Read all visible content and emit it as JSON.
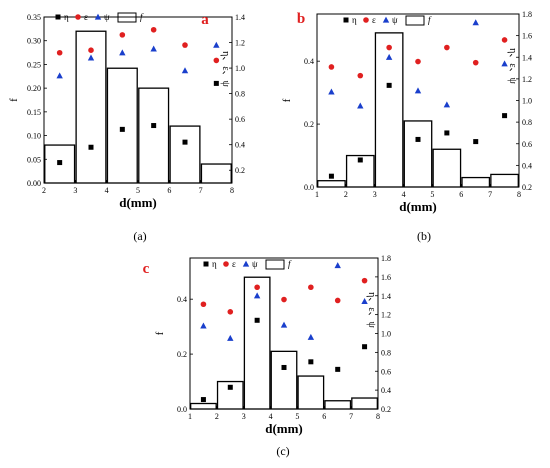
{
  "legend": {
    "eta": "η",
    "eps": "ε",
    "psi": "ψ",
    "f": "f"
  },
  "colors": {
    "eta": "#000000",
    "eps": "#e02020",
    "psi": "#1a3fcc",
    "bar": "#000000"
  },
  "chart_data": [
    {
      "type": "bar",
      "letter": "a",
      "caption": "(a)",
      "xlabel": "d(mm)",
      "ylabel": "f",
      "y2label": "η、ε、ψ",
      "xlim": [
        2,
        8
      ],
      "ylim": [
        0,
        0.35
      ],
      "y2lim": [
        0.1,
        1.4
      ],
      "xticks": [
        "2",
        "3",
        "4",
        "5",
        "6",
        "7",
        "8"
      ],
      "yticks": [
        "0.00",
        "0.05",
        "0.10",
        "0.15",
        "0.20",
        "0.25",
        "0.30",
        "0.35"
      ],
      "y2ticks": [
        "0.2",
        "0.4",
        "0.6",
        "0.8",
        "1.0",
        "1.2",
        "1.4"
      ],
      "bar_width": 0.95,
      "bars": {
        "x": [
          2.5,
          3.5,
          4.5,
          5.5,
          6.5,
          7.5
        ],
        "values": [
          0.08,
          0.32,
          0.242,
          0.2,
          0.12,
          0.04
        ]
      },
      "series": [
        {
          "key": "eta",
          "marker": "square",
          "x": [
            2.5,
            3.5,
            4.5,
            5.5,
            6.5,
            7.5
          ],
          "values": [
            0.26,
            0.38,
            0.52,
            0.55,
            0.42,
            0.88
          ]
        },
        {
          "key": "eps",
          "marker": "circle",
          "x": [
            2.5,
            3.5,
            4.5,
            5.5,
            6.5,
            7.5
          ],
          "values": [
            1.12,
            1.14,
            1.26,
            1.3,
            1.18,
            1.06
          ]
        },
        {
          "key": "psi",
          "marker": "triangle",
          "x": [
            2.5,
            3.5,
            4.5,
            5.5,
            6.5,
            7.5
          ],
          "values": [
            0.94,
            1.08,
            1.12,
            1.15,
            0.98,
            1.18
          ]
        }
      ]
    },
    {
      "type": "bar",
      "letter": "b",
      "caption": "(b)",
      "xlabel": "d(mm)",
      "ylabel": "f",
      "y2label": "η、ε、ψ",
      "xlim": [
        1,
        8
      ],
      "ylim": [
        0,
        0.55
      ],
      "y2lim": [
        0.2,
        1.8
      ],
      "xticks": [
        "1",
        "2",
        "3",
        "4",
        "5",
        "6",
        "7",
        "8"
      ],
      "yticks": [
        "0.0",
        "0.2",
        "0.4"
      ],
      "y2ticks": [
        "0.2",
        "0.4",
        "0.6",
        "0.8",
        "1.0",
        "1.2",
        "1.4",
        "1.6",
        "1.8"
      ],
      "bar_width": 0.95,
      "bars": {
        "x": [
          1.5,
          2.5,
          3.5,
          4.5,
          5.5,
          6.5,
          7.5
        ],
        "values": [
          0.02,
          0.1,
          0.49,
          0.21,
          0.12,
          0.03,
          0.04
        ]
      },
      "series": [
        {
          "key": "eta",
          "marker": "square",
          "x": [
            1.5,
            2.5,
            3.5,
            4.5,
            5.5,
            6.5,
            7.5
          ],
          "values": [
            0.3,
            0.45,
            1.14,
            0.64,
            0.7,
            0.62,
            0.86
          ]
        },
        {
          "key": "eps",
          "marker": "circle",
          "x": [
            1.5,
            2.5,
            3.5,
            4.5,
            5.5,
            6.5,
            7.5
          ],
          "values": [
            1.31,
            1.23,
            1.49,
            1.36,
            1.49,
            1.35,
            1.56
          ]
        },
        {
          "key": "psi",
          "marker": "triangle",
          "x": [
            1.5,
            2.5,
            3.5,
            4.5,
            5.5,
            6.5,
            7.5
          ],
          "values": [
            1.08,
            0.95,
            1.4,
            1.09,
            0.96,
            1.72,
            1.34
          ]
        }
      ]
    },
    {
      "type": "bar",
      "letter": "c",
      "caption": "(c)",
      "xlabel": "d(mm)",
      "ylabel": "f",
      "y2label": "η、ε、ψ",
      "xlim": [
        1,
        8
      ],
      "ylim": [
        0,
        0.55
      ],
      "y2lim": [
        0.2,
        1.8
      ],
      "xticks": [
        "1",
        "2",
        "3",
        "4",
        "5",
        "6",
        "7",
        "8"
      ],
      "yticks": [
        "0.0",
        "0.2",
        "0.4"
      ],
      "y2ticks": [
        "0.2",
        "0.4",
        "0.6",
        "0.8",
        "1.0",
        "1.2",
        "1.4",
        "1.6",
        "1.8"
      ],
      "bar_width": 0.95,
      "bars": {
        "x": [
          1.5,
          2.5,
          3.5,
          4.5,
          5.5,
          6.5,
          7.5
        ],
        "values": [
          0.02,
          0.1,
          0.48,
          0.21,
          0.12,
          0.03,
          0.04
        ]
      },
      "series": [
        {
          "key": "eta",
          "marker": "square",
          "x": [
            1.5,
            2.5,
            3.5,
            4.5,
            5.5,
            6.5,
            7.5
          ],
          "values": [
            0.3,
            0.43,
            1.14,
            0.64,
            0.7,
            0.62,
            0.86
          ]
        },
        {
          "key": "eps",
          "marker": "circle",
          "x": [
            1.5,
            2.5,
            3.5,
            4.5,
            5.5,
            6.5,
            7.5
          ],
          "values": [
            1.31,
            1.23,
            1.49,
            1.36,
            1.49,
            1.35,
            1.56
          ]
        },
        {
          "key": "psi",
          "marker": "triangle",
          "x": [
            1.5,
            2.5,
            3.5,
            4.5,
            5.5,
            6.5,
            7.5
          ],
          "values": [
            1.08,
            0.95,
            1.4,
            1.09,
            0.96,
            1.72,
            1.34
          ]
        }
      ]
    }
  ]
}
